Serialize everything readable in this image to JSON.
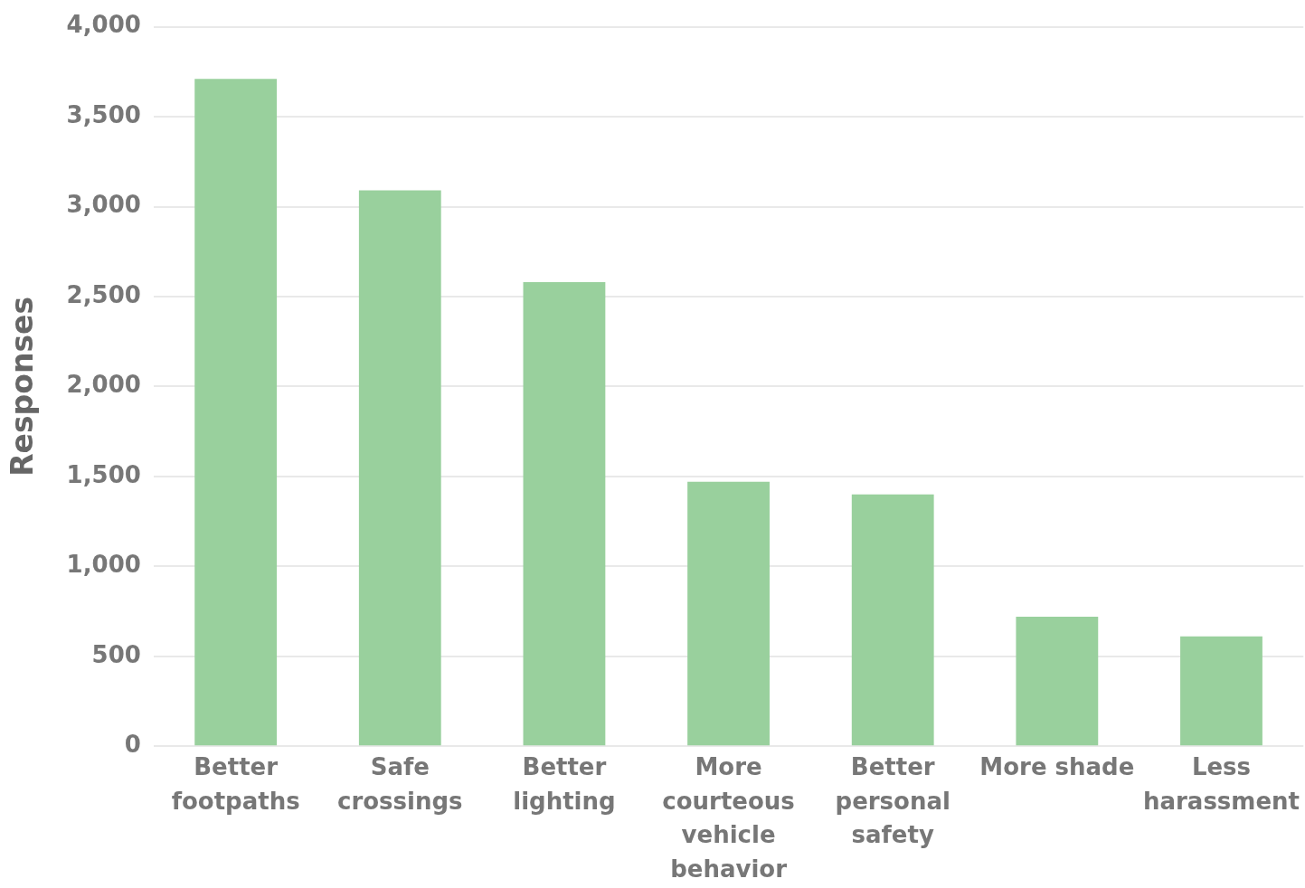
{
  "chart_data": {
    "type": "bar",
    "ylabel": "Responses",
    "categories": [
      "Better footpaths",
      "Safe crossings",
      "Better lighting",
      "More courteous vehicle behavior",
      "Better personal safety",
      "More shade",
      "Less harassment"
    ],
    "values": [
      3710,
      3090,
      2580,
      1470,
      1400,
      720,
      610
    ],
    "color": "#99d09d",
    "ylim": [
      0,
      4000
    ],
    "yticks": [
      0,
      {
        "value": 500,
        "label": "500"
      },
      {
        "value": 1000,
        "label": "1,000"
      },
      {
        "value": 1500,
        "label": "1,500"
      },
      {
        "value": 2000,
        "label": "2,000"
      },
      {
        "value": 2500,
        "label": "2,500"
      },
      {
        "value": 3000,
        "label": "3,000"
      },
      {
        "value": 3500,
        "label": "3,500"
      },
      {
        "value": 4000,
        "label": "4,000"
      }
    ],
    "grid": "y"
  }
}
